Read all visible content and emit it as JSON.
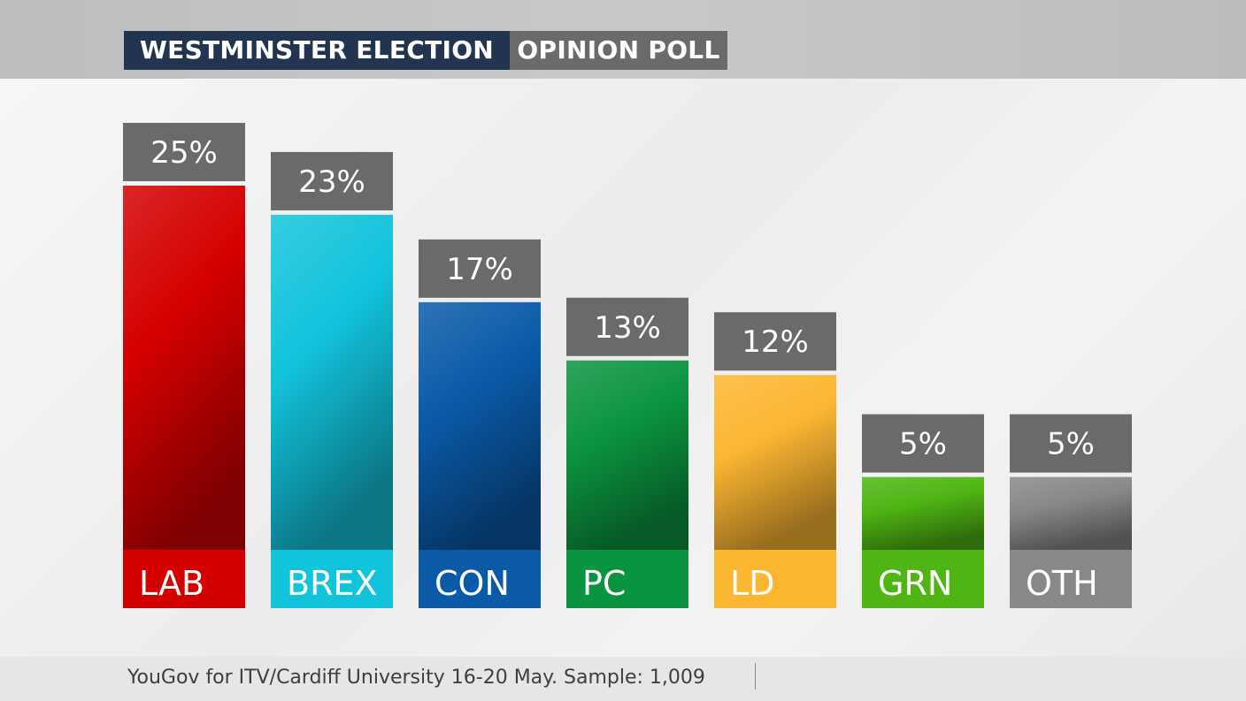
{
  "header": {
    "title_left": "WESTMINSTER ELECTION",
    "title_right": "OPINION POLL"
  },
  "footer": {
    "source": "YouGov for ITV/Cardiff University 16-20 May. Sample: 1,009"
  },
  "chart_data": {
    "type": "bar",
    "categories": [
      "LAB",
      "BREX",
      "CON",
      "PC",
      "LD",
      "GRN",
      "OTH"
    ],
    "values": [
      25,
      23,
      17,
      13,
      12,
      5,
      5
    ],
    "value_labels": [
      "25%",
      "23%",
      "17%",
      "13%",
      "12%",
      "5%",
      "5%"
    ],
    "colors": [
      "#d40000",
      "#12c3dc",
      "#0a5aa8",
      "#0b9440",
      "#fbb632",
      "#4fb514",
      "#888888"
    ],
    "ylim": [
      0,
      25
    ],
    "grid": false,
    "legend": "none"
  }
}
